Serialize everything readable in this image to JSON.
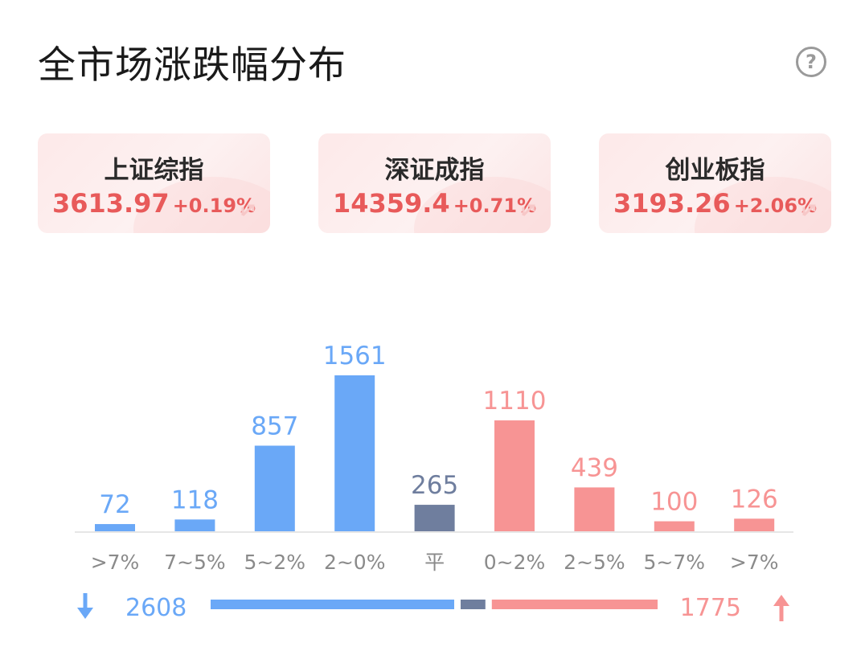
{
  "header": {
    "title": "全市场涨跌幅分布"
  },
  "indices": [
    {
      "name": "上证综指",
      "price": "3613.97",
      "change": "+0.19%"
    },
    {
      "name": "深证成指",
      "price": "14359.4",
      "change": "+0.71%"
    },
    {
      "name": "创业板指",
      "price": "3193.26",
      "change": "+2.06%"
    }
  ],
  "colors": {
    "down": "#6aa8f7",
    "flat": "#6f7e9e",
    "up": "#f79494",
    "quote": "#e85a5a"
  },
  "chart_data": {
    "type": "bar",
    "categories": [
      ">7%",
      "7~5%",
      "5~2%",
      "2~0%",
      "平",
      "0~2%",
      "2~5%",
      "5~7%",
      ">7%"
    ],
    "values": [
      72,
      118,
      857,
      1561,
      265,
      1110,
      439,
      100,
      126
    ],
    "groups": [
      "down",
      "down",
      "down",
      "down",
      "flat",
      "up",
      "up",
      "up",
      "up"
    ]
  },
  "summary": {
    "down_total": "2608",
    "up_total": "1775",
    "flat_total": 265
  }
}
